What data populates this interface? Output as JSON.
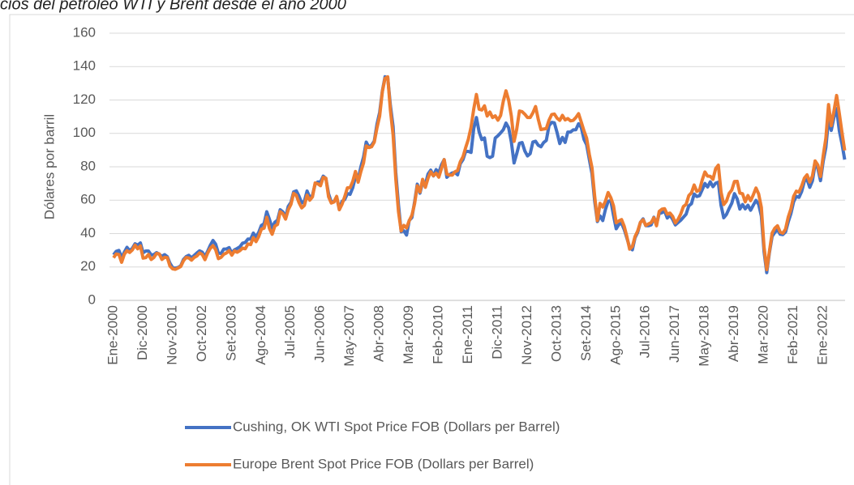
{
  "chart_data": {
    "type": "line",
    "title": "cios del petróleo WTI y Brent desde el año 2000",
    "y_label": "Dólares por barril",
    "categories": [
      "Ene-2000",
      null,
      null,
      null,
      null,
      null,
      null,
      null,
      null,
      null,
      null,
      "Dic-2000",
      null,
      null,
      null,
      null,
      null,
      null,
      null,
      null,
      null,
      null,
      "Nov-2001",
      null,
      null,
      null,
      null,
      null,
      null,
      null,
      null,
      null,
      null,
      "Oct-2002",
      null,
      null,
      null,
      null,
      null,
      null,
      null,
      null,
      null,
      null,
      "Set-2003",
      null,
      null,
      null,
      null,
      null,
      null,
      null,
      null,
      null,
      null,
      "Ago-2004",
      null,
      null,
      null,
      null,
      null,
      null,
      null,
      null,
      null,
      null,
      "Jul-2005",
      null,
      null,
      null,
      null,
      null,
      null,
      null,
      null,
      null,
      null,
      "Jun-2006",
      null,
      null,
      null,
      null,
      null,
      null,
      null,
      null,
      null,
      null,
      "May-2007",
      null,
      null,
      null,
      null,
      null,
      null,
      null,
      null,
      null,
      null,
      "Abr-2008",
      null,
      null,
      null,
      null,
      null,
      null,
      null,
      null,
      null,
      null,
      "Mar-2009",
      null,
      null,
      null,
      null,
      null,
      null,
      null,
      null,
      null,
      null,
      "Feb-2010",
      null,
      null,
      null,
      null,
      null,
      null,
      null,
      null,
      null,
      null,
      "Ene-2011",
      null,
      null,
      null,
      null,
      null,
      null,
      null,
      null,
      null,
      null,
      "Dic-2011",
      null,
      null,
      null,
      null,
      null,
      null,
      null,
      null,
      null,
      null,
      "Nov-2012",
      null,
      null,
      null,
      null,
      null,
      null,
      null,
      null,
      null,
      null,
      "Oct-2013",
      null,
      null,
      null,
      null,
      null,
      null,
      null,
      null,
      null,
      null,
      "Set-2014",
      null,
      null,
      null,
      null,
      null,
      null,
      null,
      null,
      null,
      null,
      "Ago-2015",
      null,
      null,
      null,
      null,
      null,
      null,
      null,
      null,
      null,
      null,
      "Jul-2016",
      null,
      null,
      null,
      null,
      null,
      null,
      null,
      null,
      null,
      null,
      "Jun-2017",
      null,
      null,
      null,
      null,
      null,
      null,
      null,
      null,
      null,
      null,
      "May-2018",
      null,
      null,
      null,
      null,
      null,
      null,
      null,
      null,
      null,
      null,
      "Abr-2019",
      null,
      null,
      null,
      null,
      null,
      null,
      null,
      null,
      null,
      null,
      "Mar-2020",
      null,
      null,
      null,
      null,
      null,
      null,
      null,
      null,
      null,
      null,
      "Feb-2021",
      null,
      null,
      null,
      null,
      null,
      null,
      null,
      null,
      null,
      null,
      "Ene-2022",
      null,
      null,
      null,
      null,
      null,
      null,
      null,
      null
    ],
    "series": [
      {
        "name": "Cushing, OK WTI Spot Price FOB (Dollars per Barrel)",
        "color": "#4472c4",
        "values": [
          27.3,
          29.4,
          29.9,
          25.7,
          28.8,
          31.8,
          29.7,
          31.2,
          33.9,
          33.1,
          34.4,
          28.5,
          29.6,
          29.6,
          27.2,
          27.4,
          28.6,
          27.6,
          26.4,
          27.4,
          26.2,
          22.2,
          19.6,
          19.3,
          19.7,
          20.7,
          24.5,
          26.2,
          27.0,
          25.5,
          26.9,
          28.4,
          29.7,
          28.9,
          26.3,
          29.4,
          33.0,
          35.9,
          33.6,
          28.3,
          28.1,
          30.7,
          30.8,
          31.6,
          28.3,
          30.3,
          31.1,
          32.1,
          34.3,
          34.7,
          36.7,
          36.7,
          40.3,
          38.0,
          40.7,
          44.9,
          45.9,
          53.1,
          48.5,
          43.3,
          46.8,
          48.0,
          54.3,
          53.0,
          49.8,
          56.3,
          58.7,
          65.0,
          65.6,
          62.4,
          58.3,
          59.4,
          65.5,
          61.6,
          62.9,
          69.7,
          70.9,
          70.9,
          74.4,
          73.0,
          63.8,
          58.9,
          59.1,
          62.0,
          54.5,
          59.3,
          60.4,
          64.0,
          63.5,
          67.5,
          74.1,
          72.4,
          79.9,
          85.8,
          94.8,
          91.7,
          93.0,
          95.4,
          105.5,
          112.6,
          125.4,
          133.9,
          133.4,
          116.7,
          104.1,
          76.6,
          57.3,
          41.1,
          41.7,
          39.1,
          47.9,
          49.6,
          59.0,
          69.6,
          64.2,
          71.0,
          69.4,
          75.7,
          78.0,
          74.5,
          78.3,
          76.4,
          81.2,
          84.3,
          73.7,
          75.3,
          76.3,
          76.6,
          75.2,
          81.9,
          84.3,
          89.2,
          89.2,
          88.6,
          102.9,
          109.5,
          100.9,
          96.3,
          97.3,
          86.3,
          85.5,
          86.3,
          97.2,
          98.6,
          100.3,
          102.2,
          106.2,
          103.3,
          94.7,
          82.3,
          87.9,
          94.1,
          94.5,
          89.5,
          86.5,
          87.9,
          94.8,
          95.3,
          92.9,
          92.0,
          94.5,
          95.8,
          104.6,
          106.6,
          106.3,
          100.5,
          93.9,
          97.6,
          94.6,
          100.8,
          100.8,
          102.1,
          102.2,
          105.8,
          103.6,
          96.5,
          93.2,
          84.4,
          75.8,
          59.3,
          47.2,
          50.6,
          47.8,
          54.5,
          59.3,
          59.8,
          50.9,
          42.9,
          45.5,
          46.2,
          42.4,
          37.2,
          31.7,
          30.3,
          37.5,
          40.8,
          46.7,
          48.8,
          44.7,
          44.7,
          45.2,
          49.8,
          45.7,
          52.0,
          52.5,
          53.5,
          49.3,
          51.1,
          48.5,
          45.2,
          46.6,
          48.0,
          49.8,
          51.6,
          56.6,
          57.9,
          63.7,
          62.2,
          62.7,
          66.3,
          70.0,
          67.9,
          71.0,
          68.1,
          70.2,
          70.8,
          57.0,
          49.5,
          51.4,
          55.0,
          58.2,
          63.9,
          60.8,
          54.7,
          57.4,
          54.8,
          57.0,
          54.0,
          57.0,
          59.9,
          57.5,
          50.5,
          29.2,
          16.6,
          28.6,
          38.3,
          40.7,
          42.3,
          39.6,
          39.4,
          41.0,
          47.0,
          52.0,
          59.0,
          62.3,
          61.7,
          65.2,
          71.4,
          72.5,
          67.7,
          71.6,
          81.5,
          79.2,
          71.7,
          83.2,
          91.6,
          108.5,
          101.8,
          109.6,
          114.8,
          101.6,
          93.7,
          84.3
        ]
      },
      {
        "name": "Europe Brent Spot Price FOB (Dollars per Barrel)",
        "color": "#ed7d31",
        "values": [
          25.5,
          27.8,
          27.5,
          22.8,
          27.6,
          29.8,
          28.7,
          30.2,
          33.1,
          30.9,
          32.6,
          25.3,
          25.6,
          27.5,
          24.5,
          25.7,
          28.1,
          27.9,
          24.5,
          25.8,
          25.6,
          20.5,
          18.9,
          18.6,
          19.4,
          20.3,
          23.7,
          25.7,
          25.4,
          24.1,
          25.7,
          26.6,
          28.4,
          27.5,
          24.4,
          28.3,
          31.2,
          32.8,
          30.3,
          25.0,
          25.8,
          27.6,
          28.4,
          29.8,
          27.1,
          29.6,
          28.8,
          29.8,
          31.3,
          30.9,
          33.8,
          33.4,
          37.6,
          35.2,
          38.2,
          42.7,
          43.2,
          49.8,
          43.1,
          39.6,
          44.5,
          45.5,
          53.1,
          51.9,
          48.7,
          54.3,
          57.5,
          64.1,
          62.9,
          58.5,
          55.4,
          56.9,
          63.0,
          60.0,
          62.0,
          70.3,
          69.8,
          68.7,
          73.7,
          73.2,
          62.0,
          58.3,
          58.9,
          62.3,
          54.3,
          57.6,
          62.1,
          67.4,
          67.5,
          71.3,
          77.2,
          70.8,
          77.1,
          82.3,
          92.5,
          91.5,
          92.0,
          94.8,
          103.3,
          110.4,
          125.0,
          133.0,
          133.9,
          113.9,
          99.1,
          72.8,
          53.2,
          41.6,
          44.9,
          43.4,
          47.7,
          51.0,
          57.9,
          68.6,
          64.9,
          72.5,
          67.7,
          73.2,
          77.0,
          74.7,
          76.2,
          73.8,
          79.0,
          84.3,
          75.6,
          75.0,
          75.0,
          77.0,
          77.8,
          83.0,
          86.0,
          91.5,
          96.5,
          103.7,
          114.6,
          123.3,
          114.5,
          114.0,
          116.5,
          110.4,
          112.8,
          109.5,
          110.5,
          107.9,
          110.7,
          119.3,
          125.5,
          119.8,
          110.3,
          95.2,
          102.6,
          113.4,
          113.0,
          111.5,
          109.5,
          109.5,
          112.3,
          116.1,
          108.5,
          102.3,
          102.6,
          102.9,
          107.9,
          111.3,
          111.6,
          109.1,
          107.8,
          110.8,
          108.1,
          108.9,
          107.5,
          107.8,
          109.5,
          111.8,
          106.8,
          101.6,
          97.1,
          87.4,
          79.4,
          62.3,
          47.8,
          58.1,
          55.9,
          59.5,
          64.6,
          61.5,
          56.6,
          46.5,
          47.6,
          48.4,
          44.3,
          38.0,
          30.7,
          32.2,
          38.2,
          41.6,
          46.7,
          48.3,
          44.9,
          45.8,
          46.6,
          49.5,
          44.7,
          53.3,
          54.6,
          54.9,
          51.6,
          52.3,
          50.3,
          46.4,
          48.5,
          51.7,
          56.2,
          57.5,
          62.7,
          64.4,
          69.1,
          65.3,
          66.0,
          72.1,
          76.9,
          74.4,
          74.3,
          72.5,
          78.9,
          81.0,
          64.8,
          57.4,
          59.4,
          64.0,
          66.1,
          71.2,
          71.3,
          64.2,
          63.9,
          59.0,
          62.8,
          59.7,
          63.2,
          67.3,
          63.7,
          55.7,
          32.0,
          18.4,
          29.4,
          40.3,
          43.2,
          44.7,
          40.9,
          40.2,
          42.7,
          49.9,
          54.8,
          62.3,
          65.4,
          64.8,
          68.5,
          73.2,
          75.2,
          70.8,
          74.5,
          83.5,
          81.1,
          74.2,
          86.5,
          97.1,
          117.3,
          104.6,
          113.3,
          122.7,
          111.9,
          100.5,
          89.8
        ]
      }
    ],
    "ylim": [
      0,
      160
    ],
    "yticks": [
      0,
      20,
      40,
      60,
      80,
      100,
      120,
      140,
      160
    ],
    "grid": true,
    "legend": "bottom"
  }
}
